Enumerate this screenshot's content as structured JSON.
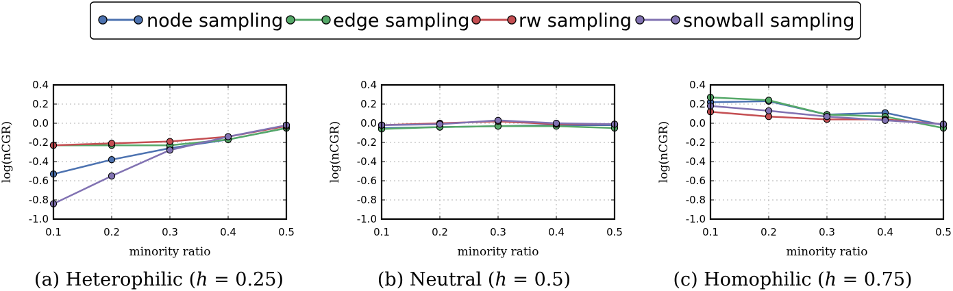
{
  "legend": {
    "placement": "top-center",
    "entries": [
      {
        "name": "node sampling",
        "color": "#4c72b0"
      },
      {
        "name": "edge sampling",
        "color": "#55a868"
      },
      {
        "name": "rw sampling",
        "color": "#c44e52"
      },
      {
        "name": "snowball sampling",
        "color": "#8172b2"
      }
    ]
  },
  "chart_data": [
    {
      "type": "line",
      "caption": "(a) Heterophilic (h = 0.25)",
      "caption_parts": {
        "prefix": "(a) Heterophilic (",
        "var": "h",
        "eq": " = 0.25)"
      },
      "xlabel": "minority ratio",
      "ylabel": "log(nCGR)",
      "x": [
        0.1,
        0.2,
        0.3,
        0.4,
        0.5
      ],
      "x_tick_labels": [
        "0.1",
        "0.2",
        "0.3",
        "0.4",
        "0.5"
      ],
      "xlim": [
        0.1,
        0.5
      ],
      "ylim": [
        -1.0,
        0.4
      ],
      "y_ticks": [
        -1.0,
        -0.8,
        -0.6,
        -0.4,
        -0.2,
        0.0,
        0.2,
        0.4
      ],
      "y_tick_labels": [
        "-1.0",
        "-0.8",
        "-0.6",
        "-0.4",
        "-0.2",
        "0.0",
        "0.2",
        "0.4"
      ],
      "grid": true,
      "series": [
        {
          "name": "node sampling",
          "values": [
            -0.53,
            -0.38,
            -0.26,
            -0.17,
            -0.05
          ]
        },
        {
          "name": "edge sampling",
          "values": [
            -0.23,
            -0.23,
            -0.23,
            -0.17,
            -0.05
          ]
        },
        {
          "name": "rw sampling",
          "values": [
            -0.23,
            -0.21,
            -0.19,
            -0.14,
            -0.03
          ]
        },
        {
          "name": "snowball sampling",
          "values": [
            -0.84,
            -0.55,
            -0.28,
            -0.14,
            -0.02
          ]
        }
      ]
    },
    {
      "type": "line",
      "caption": "(b) Neutral (h = 0.5)",
      "caption_parts": {
        "prefix": "(b) Neutral (",
        "var": "h",
        "eq": " = 0.5)"
      },
      "xlabel": "minority ratio",
      "ylabel": "log(nCGR)",
      "x": [
        0.1,
        0.2,
        0.3,
        0.4,
        0.5
      ],
      "x_tick_labels": [
        "0.1",
        "0.2",
        "0.3",
        "0.4",
        "0.5"
      ],
      "xlim": [
        0.1,
        0.5
      ],
      "ylim": [
        -1.0,
        0.4
      ],
      "y_ticks": [
        -1.0,
        -0.8,
        -0.6,
        -0.4,
        -0.2,
        0.0,
        0.2,
        0.4
      ],
      "y_tick_labels": [
        "-1.0",
        "-0.8",
        "-0.6",
        "-0.4",
        "-0.2",
        "0.0",
        "0.2",
        "0.4"
      ],
      "grid": true,
      "series": [
        {
          "name": "node sampling",
          "values": [
            -0.05,
            -0.04,
            -0.03,
            -0.02,
            -0.02
          ]
        },
        {
          "name": "edge sampling",
          "values": [
            -0.06,
            -0.04,
            -0.03,
            -0.03,
            -0.05
          ]
        },
        {
          "name": "rw sampling",
          "values": [
            -0.02,
            0.0,
            0.02,
            -0.01,
            -0.01
          ]
        },
        {
          "name": "snowball sampling",
          "values": [
            -0.02,
            -0.01,
            0.03,
            0.0,
            -0.01
          ]
        }
      ]
    },
    {
      "type": "line",
      "caption": "(c) Homophilic (h = 0.75)",
      "caption_parts": {
        "prefix": "(c) Homophilic (",
        "var": "h",
        "eq": " = 0.75)"
      },
      "xlabel": "minority ratio",
      "ylabel": "log(nCGR)",
      "x": [
        0.1,
        0.2,
        0.3,
        0.4,
        0.5
      ],
      "x_tick_labels": [
        "0.1",
        "0.2",
        "0.3",
        "0.4",
        "0.5"
      ],
      "xlim": [
        0.1,
        0.5
      ],
      "ylim": [
        -1.0,
        0.4
      ],
      "y_ticks": [
        -1.0,
        -0.8,
        -0.6,
        -0.4,
        -0.2,
        0.0,
        0.2,
        0.4
      ],
      "y_tick_labels": [
        "-1.0",
        "-0.8",
        "-0.6",
        "-0.4",
        "-0.2",
        "0.0",
        "0.2",
        "0.4"
      ],
      "grid": true,
      "series": [
        {
          "name": "node sampling",
          "values": [
            0.22,
            0.23,
            0.09,
            0.11,
            -0.02
          ]
        },
        {
          "name": "edge sampling",
          "values": [
            0.27,
            0.24,
            0.09,
            0.07,
            -0.05
          ]
        },
        {
          "name": "rw sampling",
          "values": [
            0.12,
            0.07,
            0.04,
            0.04,
            -0.01
          ]
        },
        {
          "name": "snowball sampling",
          "values": [
            0.18,
            0.13,
            0.07,
            0.03,
            -0.01
          ]
        }
      ]
    }
  ]
}
